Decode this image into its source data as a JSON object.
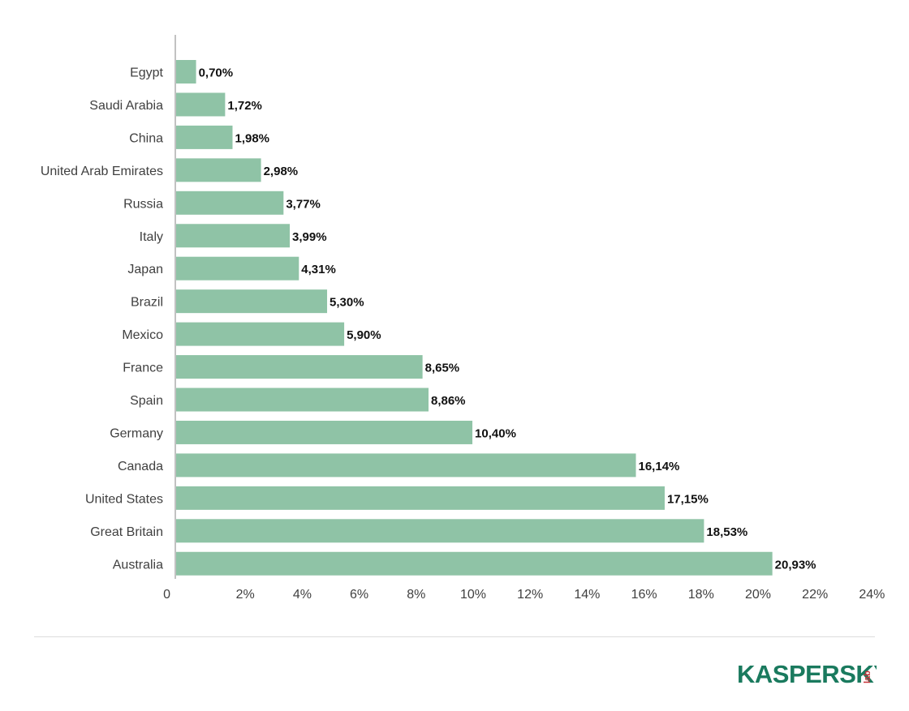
{
  "chart_data": {
    "type": "bar",
    "orientation": "horizontal",
    "categories": [
      "Egypt",
      "Saudi Arabia",
      "China",
      "United Arab Emirates",
      "Russia",
      "Italy",
      "Japan",
      "Brazil",
      "Mexico",
      "France",
      "Spain",
      "Germany",
      "Canada",
      "United States",
      "Great Britain",
      "Australia"
    ],
    "values": [
      0.7,
      1.72,
      1.98,
      2.98,
      3.77,
      3.99,
      4.31,
      5.3,
      5.9,
      8.65,
      8.86,
      10.4,
      16.14,
      17.15,
      18.53,
      20.93
    ],
    "value_labels": [
      "0,70%",
      "1,72%",
      "1,98%",
      "2,98%",
      "3,77%",
      "3,99%",
      "4,31%",
      "5,30%",
      "5,90%",
      "8,65%",
      "8,86%",
      "10,40%",
      "16,14%",
      "17,15%",
      "18,53%",
      "20,93%"
    ],
    "x_ticks": [
      0,
      2,
      4,
      6,
      8,
      10,
      12,
      14,
      16,
      18,
      20,
      22,
      24
    ],
    "x_tick_labels": [
      "0",
      "2%",
      "4%",
      "6%",
      "8%",
      "10%",
      "12%",
      "14%",
      "16%",
      "18%",
      "20%",
      "22%",
      "24%"
    ],
    "xlim": [
      0,
      24
    ],
    "title": "",
    "xlabel": "",
    "ylabel": "",
    "grid": false,
    "legend": "none",
    "bar_color": "#8fc3a6"
  },
  "logo": {
    "brand": "KASPERSKY",
    "sub": "lab",
    "brand_color": "#1a7a5e",
    "sub_color": "#c8353a"
  }
}
